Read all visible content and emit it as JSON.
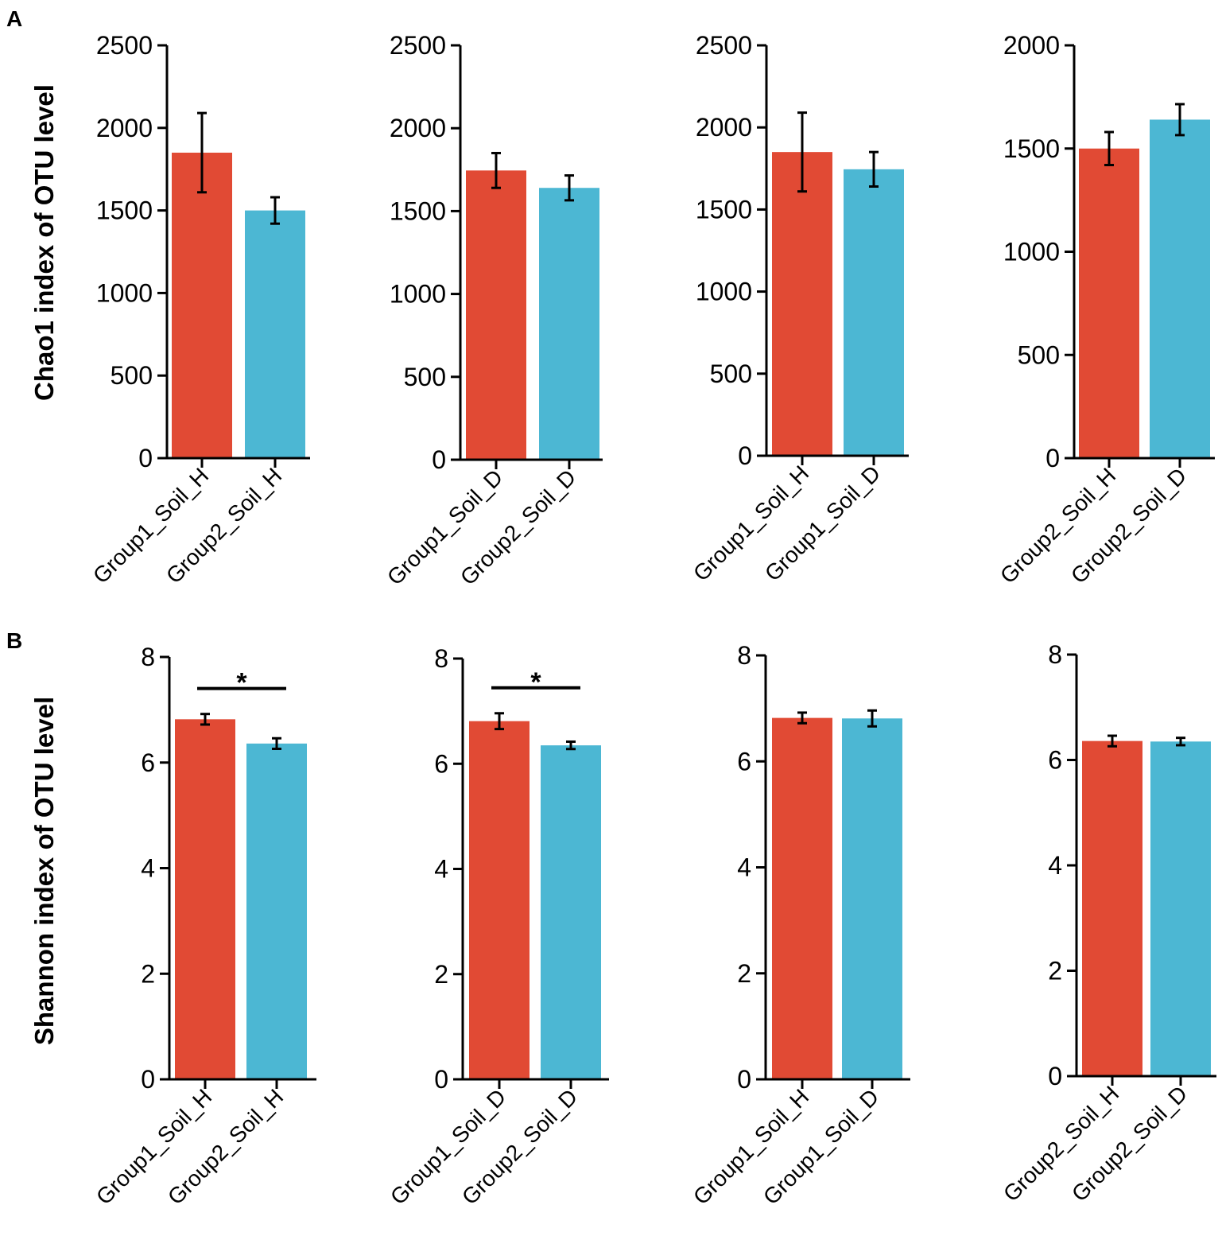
{
  "colors": {
    "red": "#e14a34",
    "blue": "#4cb7d3",
    "axis": "#000000"
  },
  "panels": {
    "A": "A",
    "B": "B"
  },
  "row_labels": {
    "A": "Chao1 index of OTU level",
    "B": "Shannon index of OTU level"
  },
  "chart_data": [
    {
      "type": "bar",
      "panel": "A",
      "title": "",
      "xlabel": "",
      "ylabel": "Chao1 index of OTU level",
      "ylim": [
        0,
        2500
      ],
      "yticks": [
        0,
        500,
        1000,
        1500,
        2000,
        2500
      ],
      "categories": [
        "Group1_Soil_H",
        "Group2_Soil_H"
      ],
      "values": [
        1850,
        1500
      ],
      "errors": [
        240,
        80
      ],
      "colors": [
        "red",
        "blue"
      ],
      "significance": ""
    },
    {
      "type": "bar",
      "panel": "A",
      "title": "",
      "xlabel": "",
      "ylabel": "",
      "ylim": [
        0,
        2500
      ],
      "yticks": [
        0,
        500,
        1000,
        1500,
        2000,
        2500
      ],
      "categories": [
        "Group1_Soil_D",
        "Group2_Soil_D"
      ],
      "values": [
        1745,
        1640
      ],
      "errors": [
        105,
        75
      ],
      "colors": [
        "red",
        "blue"
      ],
      "significance": ""
    },
    {
      "type": "bar",
      "panel": "A",
      "title": "",
      "xlabel": "",
      "ylabel": "",
      "ylim": [
        0,
        2500
      ],
      "yticks": [
        0,
        500,
        1000,
        1500,
        2000,
        2500
      ],
      "categories": [
        "Group1_Soil_H",
        "Group1_Soil_D"
      ],
      "values": [
        1850,
        1745
      ],
      "errors": [
        240,
        105
      ],
      "colors": [
        "red",
        "blue"
      ],
      "significance": ""
    },
    {
      "type": "bar",
      "panel": "A",
      "title": "",
      "xlabel": "",
      "ylabel": "",
      "ylim": [
        0,
        2000
      ],
      "yticks": [
        0,
        500,
        1000,
        1500,
        2000
      ],
      "categories": [
        "Group2_Soil_H",
        "Group2_Soil_D"
      ],
      "values": [
        1500,
        1640
      ],
      "errors": [
        80,
        75
      ],
      "colors": [
        "red",
        "blue"
      ],
      "significance": ""
    },
    {
      "type": "bar",
      "panel": "B",
      "title": "",
      "xlabel": "",
      "ylabel": "Shannon index of OTU level",
      "ylim": [
        0,
        8
      ],
      "yticks": [
        0,
        2,
        4,
        6,
        8
      ],
      "categories": [
        "Group1_Soil_H",
        "Group2_Soil_H"
      ],
      "values": [
        6.82,
        6.36
      ],
      "errors": [
        0.1,
        0.1
      ],
      "colors": [
        "red",
        "blue"
      ],
      "significance": "*"
    },
    {
      "type": "bar",
      "panel": "B",
      "title": "",
      "xlabel": "",
      "ylabel": "",
      "ylim": [
        0,
        8
      ],
      "yticks": [
        0,
        2,
        4,
        6,
        8
      ],
      "categories": [
        "Group1_Soil_D",
        "Group2_Soil_D"
      ],
      "values": [
        6.81,
        6.35
      ],
      "errors": [
        0.15,
        0.07
      ],
      "colors": [
        "red",
        "blue"
      ],
      "significance": "*"
    },
    {
      "type": "bar",
      "panel": "B",
      "title": "",
      "xlabel": "",
      "ylabel": "",
      "ylim": [
        0,
        8
      ],
      "yticks": [
        0,
        2,
        4,
        6,
        8
      ],
      "categories": [
        "Group1_Soil_H",
        "Group1_Soil_D"
      ],
      "values": [
        6.82,
        6.81
      ],
      "errors": [
        0.1,
        0.15
      ],
      "colors": [
        "red",
        "blue"
      ],
      "significance": ""
    },
    {
      "type": "bar",
      "panel": "B",
      "title": "",
      "xlabel": "",
      "ylabel": "",
      "ylim": [
        0,
        8
      ],
      "yticks": [
        0,
        2,
        4,
        6,
        8
      ],
      "categories": [
        "Group2_Soil_H",
        "Group2_Soil_D"
      ],
      "values": [
        6.36,
        6.35
      ],
      "errors": [
        0.1,
        0.07
      ],
      "colors": [
        "red",
        "blue"
      ],
      "significance": ""
    }
  ]
}
